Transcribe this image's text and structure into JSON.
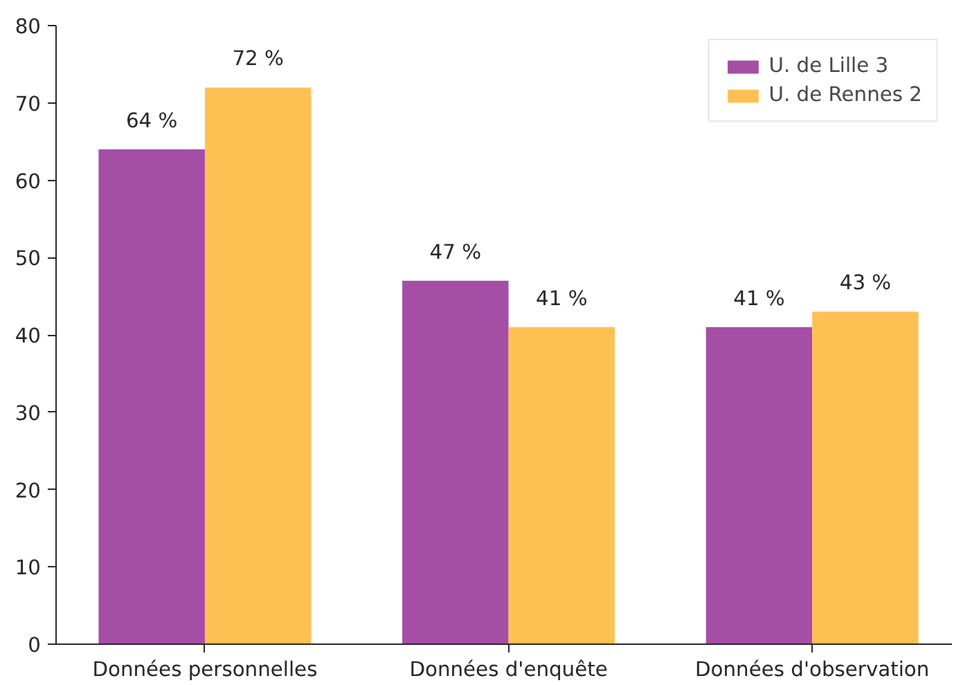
{
  "chart_data": {
    "type": "bar",
    "categories": [
      "Données personnelles",
      "Données d'enquête",
      "Données d'observation"
    ],
    "series": [
      {
        "name": "U. de Lille 3",
        "color": "#a54ea5",
        "values": [
          64,
          47,
          41
        ],
        "value_labels": [
          "64 %",
          "47 %",
          "41 %"
        ]
      },
      {
        "name": "U. de Rennes 2",
        "color": "#ffc053",
        "values": [
          72,
          41,
          43
        ],
        "value_labels": [
          "72 %",
          "41 %",
          "43 %"
        ]
      }
    ],
    "ylim": [
      0,
      80
    ],
    "yticks": [
      0,
      10,
      20,
      30,
      40,
      50,
      60,
      70,
      80
    ],
    "grid": false,
    "legend": "top right"
  }
}
